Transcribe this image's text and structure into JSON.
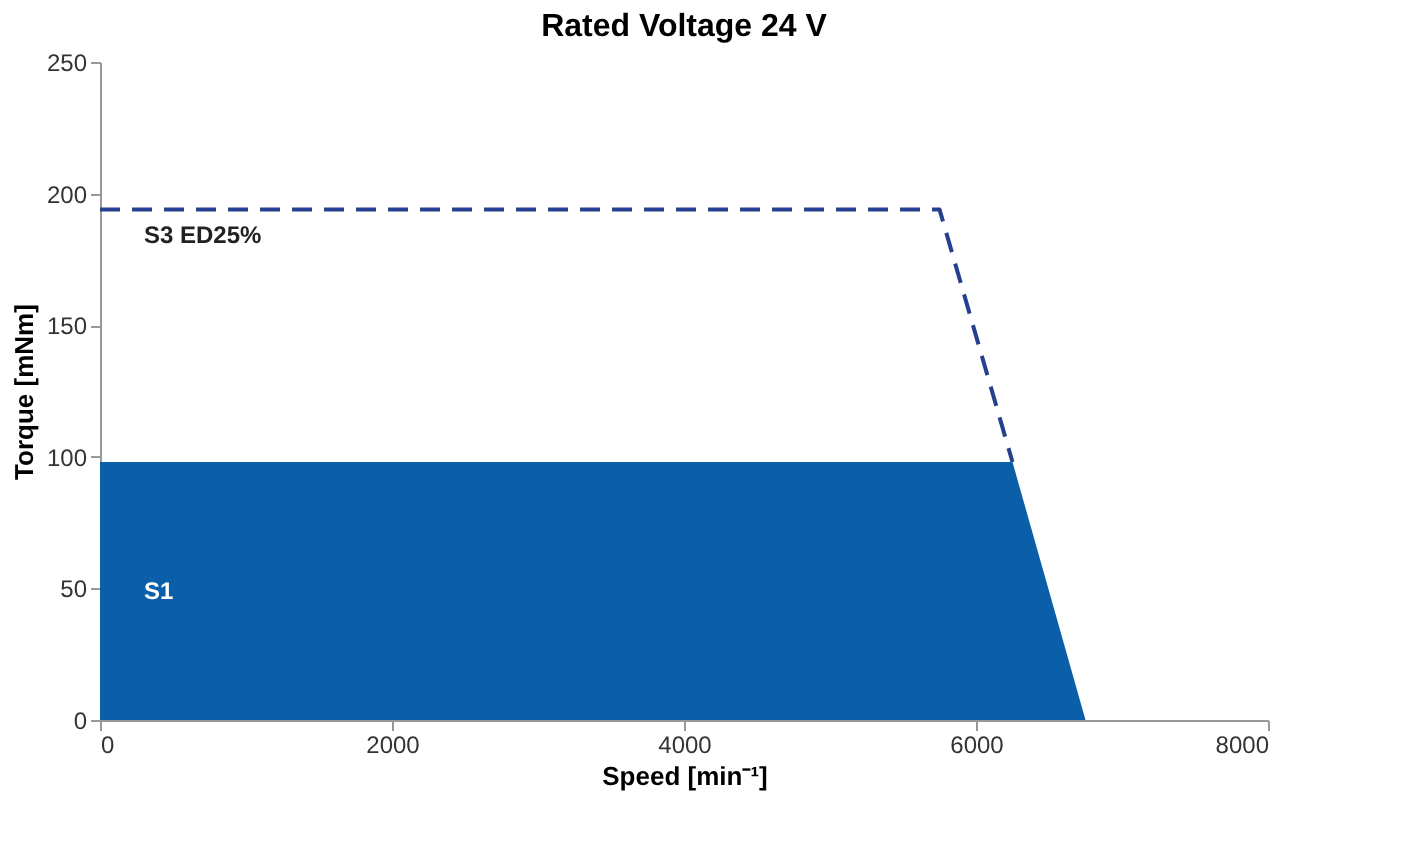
{
  "chart_data": {
    "type": "area",
    "title": "Rated Voltage 24 V",
    "xlabel": "Speed [min⁻¹]",
    "ylabel": "Torque [mNm]",
    "xlim": [
      0,
      8000
    ],
    "xticks": [
      0,
      2000,
      4000,
      6000,
      8000
    ],
    "ylim": [
      0,
      250
    ],
    "yticks": [
      0,
      50,
      100,
      150,
      200,
      250
    ],
    "grid": false,
    "series": [
      {
        "name": "S1",
        "color": "#0b5ea8",
        "x": [
          0,
          6250,
          6750
        ],
        "values": [
          98,
          98,
          0
        ]
      },
      {
        "name": "S3 ED25%",
        "type": "line",
        "color": "#25408f",
        "line_style": "dashed",
        "x": [
          0,
          5750,
          6250
        ],
        "values": [
          194,
          194,
          98
        ]
      }
    ]
  }
}
